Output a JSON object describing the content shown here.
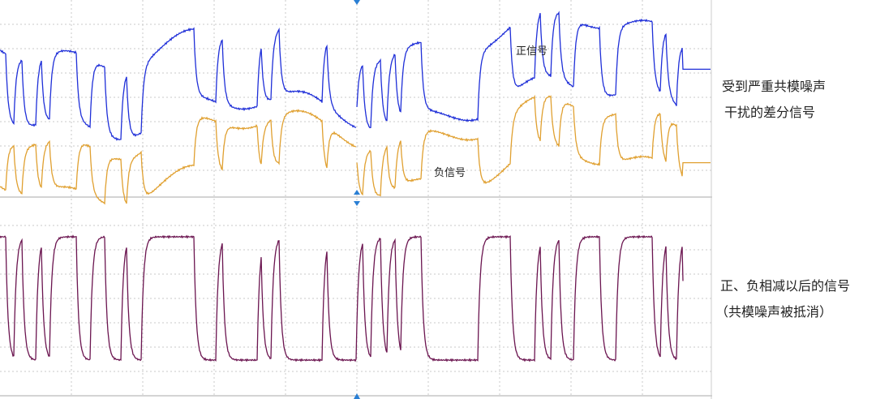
{
  "annotations": {
    "positive": "正信号",
    "negative": "负信号"
  },
  "right_text": {
    "top_line1": "受到严重共模噪声",
    "top_line2": "干扰的差分信号",
    "bottom_line1": "正、负相减以后的信号",
    "bottom_line2": "（共模噪声被抵消）"
  }
}
